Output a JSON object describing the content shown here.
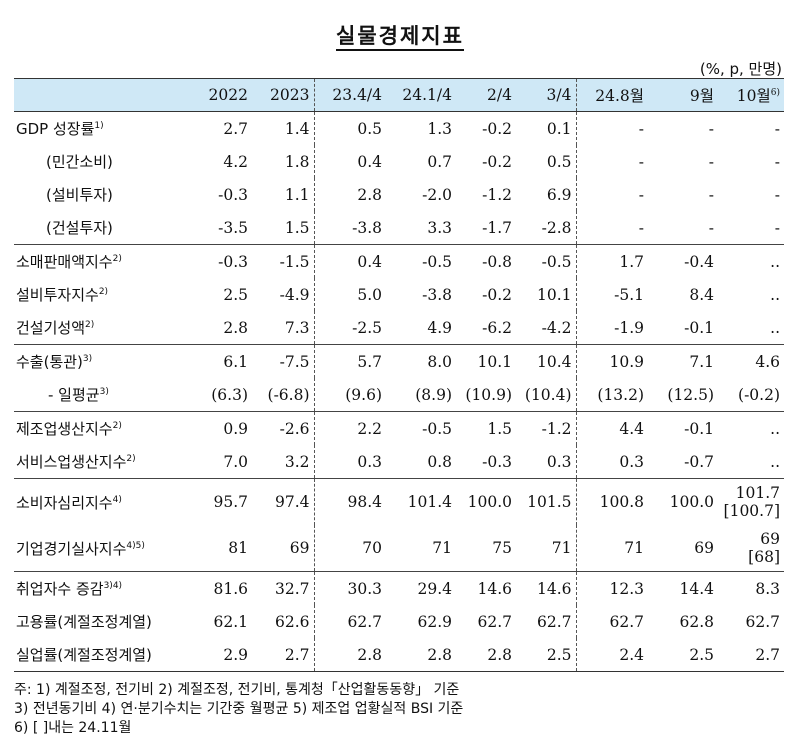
{
  "title": "실물경제지표",
  "unit": "(%, p, 만명)",
  "headers": [
    "2022",
    "2023",
    "23.4/4",
    "24.1/4",
    "2/4",
    "3/4",
    "24.8월",
    "9월",
    "10월",
    "6)"
  ],
  "rows": [
    {
      "label": "GDP 성장률",
      "sup": "1)",
      "values": [
        "2.7",
        "1.4",
        "0.5",
        "1.3",
        "-0.2",
        "0.1",
        "-",
        "-",
        "-"
      ]
    },
    {
      "label": "(민간소비)",
      "sup": "",
      "values": [
        "4.2",
        "1.8",
        "0.4",
        "0.7",
        "-0.2",
        "0.5",
        "-",
        "-",
        "-"
      ]
    },
    {
      "label": "(설비투자)",
      "sup": "",
      "values": [
        "-0.3",
        "1.1",
        "2.8",
        "-2.0",
        "-1.2",
        "6.9",
        "-",
        "-",
        "-"
      ]
    },
    {
      "label": "(건설투자)",
      "sup": "",
      "values": [
        "-3.5",
        "1.5",
        "-3.8",
        "3.3",
        "-1.7",
        "-2.8",
        "-",
        "-",
        "-"
      ]
    },
    {
      "label": "소매판매액지수",
      "sup": "2)",
      "values": [
        "-0.3",
        "-1.5",
        "0.4",
        "-0.5",
        "-0.8",
        "-0.5",
        "1.7",
        "-0.4",
        ".."
      ]
    },
    {
      "label": "설비투자지수",
      "sup": "2)",
      "values": [
        "2.5",
        "-4.9",
        "5.0",
        "-3.8",
        "-0.2",
        "10.1",
        "-5.1",
        "8.4",
        ".."
      ]
    },
    {
      "label": "건설기성액",
      "sup": "2)",
      "values": [
        "2.8",
        "7.3",
        "-2.5",
        "4.9",
        "-6.2",
        "-4.2",
        "-1.9",
        "-0.1",
        ".."
      ]
    },
    {
      "label": "수출(통관)",
      "sup": "3)",
      "values": [
        "6.1",
        "-7.5",
        "5.7",
        "8.0",
        "10.1",
        "10.4",
        "10.9",
        "7.1",
        "4.6"
      ]
    },
    {
      "label": "- 일평균",
      "sup": "3)",
      "values": [
        "(6.3)",
        "(-6.8)",
        "(9.6)",
        "(8.9)",
        "(10.9)",
        "(10.4)",
        "(13.2)",
        "(12.5)",
        "(-0.2)"
      ]
    },
    {
      "label": "제조업생산지수",
      "sup": "2)",
      "values": [
        "0.9",
        "-2.6",
        "2.2",
        "-0.5",
        "1.5",
        "-1.2",
        "4.4",
        "-0.1",
        ".."
      ]
    },
    {
      "label": "서비스업생산지수",
      "sup": "2)",
      "values": [
        "7.0",
        "3.2",
        "0.3",
        "0.8",
        "-0.3",
        "0.3",
        "0.3",
        "-0.7",
        ".."
      ]
    },
    {
      "label": "소비자심리지수",
      "sup": "4)",
      "values": [
        "95.7",
        "97.4",
        "98.4",
        "101.4",
        "100.0",
        "101.5",
        "100.8",
        "100.0",
        "101.7"
      ],
      "extra": "[100.7]"
    },
    {
      "label": "기업경기실사지수",
      "sup": "4)5)",
      "values": [
        "81",
        "69",
        "70",
        "71",
        "75",
        "71",
        "71",
        "69",
        "69"
      ],
      "extra": "[68]"
    },
    {
      "label": "취업자수 증감",
      "sup": "3)4)",
      "values": [
        "81.6",
        "32.7",
        "30.3",
        "29.4",
        "14.6",
        "14.6",
        "12.3",
        "14.4",
        "8.3"
      ]
    },
    {
      "label": "고용률(계절조정계열)",
      "sup": "",
      "values": [
        "62.1",
        "62.6",
        "62.7",
        "62.9",
        "62.7",
        "62.7",
        "62.7",
        "62.8",
        "62.7"
      ]
    },
    {
      "label": "실업률(계절조정계열)",
      "sup": "",
      "values": [
        "2.9",
        "2.7",
        "2.8",
        "2.8",
        "2.8",
        "2.5",
        "2.4",
        "2.5",
        "2.7"
      ]
    }
  ],
  "notes": [
    "주: 1) 계절조정, 전기비   2) 계절조정, 전기비, 통계청「산업활동동향」 기준",
    "     3) 전년동기비            4) 연·분기수치는 기간중 월평균        5) 제조업 업황실적 BSI 기준",
    "     6) [ ]내는 24.11월"
  ]
}
